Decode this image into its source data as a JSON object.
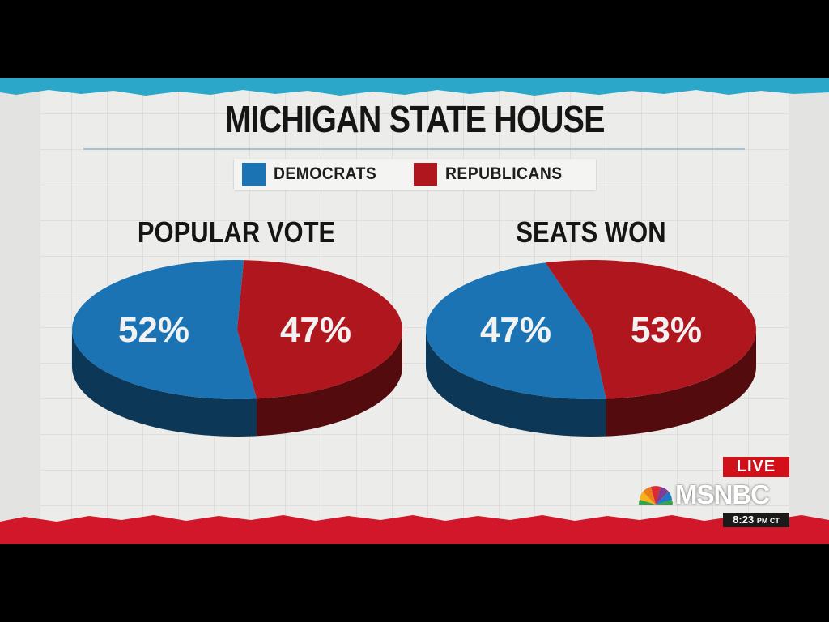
{
  "graphic": {
    "title": "MICHIGAN STATE HOUSE",
    "legend": [
      {
        "label": "DEMOCRATS",
        "color": "#1b73b3"
      },
      {
        "label": "REPUBLICANS",
        "color": "#b0161e"
      }
    ]
  },
  "chart_data": [
    {
      "type": "pie",
      "title": "POPULAR VOTE",
      "slices": [
        {
          "name": "DEMOCRATS",
          "value": 52,
          "label": "52%"
        },
        {
          "name": "REPUBLICANS",
          "value": 47,
          "label": "47%"
        }
      ]
    },
    {
      "type": "pie",
      "title": "SEATS WON",
      "slices": [
        {
          "name": "DEMOCRATS",
          "value": 47,
          "label": "47%"
        },
        {
          "name": "REPUBLICANS",
          "value": 53,
          "label": "53%"
        }
      ]
    }
  ],
  "broadcast": {
    "live_label": "LIVE",
    "network": "MSNBC",
    "time": "8:23",
    "time_zone": "PM CT"
  }
}
